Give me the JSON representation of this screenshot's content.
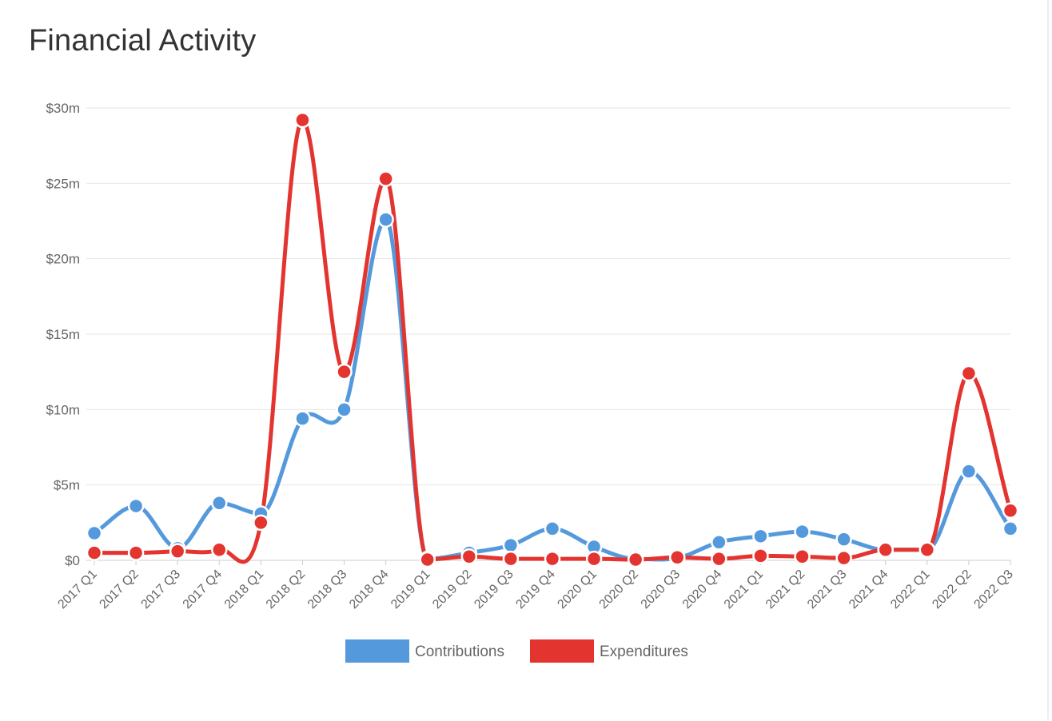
{
  "title": "Financial Activity",
  "chart_data": {
    "type": "line",
    "title": "Financial Activity",
    "xlabel": "",
    "ylabel": "",
    "categories": [
      "2017 Q1",
      "2017 Q2",
      "2017 Q3",
      "2017 Q4",
      "2018 Q1",
      "2018 Q2",
      "2018 Q3",
      "2018 Q4",
      "2019 Q1",
      "2019 Q2",
      "2019 Q3",
      "2019 Q4",
      "2020 Q1",
      "2020 Q2",
      "2020 Q3",
      "2020 Q4",
      "2021 Q1",
      "2021 Q2",
      "2021 Q3",
      "2021 Q4",
      "2022 Q1",
      "2022 Q2",
      "2022 Q3"
    ],
    "y_ticks": [
      0,
      5,
      10,
      15,
      20,
      25,
      30
    ],
    "y_tick_labels": [
      "$0",
      "$5m",
      "$10m",
      "$15m",
      "$20m",
      "$25m",
      "$30m"
    ],
    "y_unit": "millions of dollars",
    "ylim": [
      0,
      30
    ],
    "grid": true,
    "legend_position": "bottom",
    "series": [
      {
        "name": "Contributions",
        "color": "#5599dd",
        "values": [
          1.8,
          3.6,
          0.8,
          3.8,
          3.1,
          9.4,
          10.0,
          22.6,
          0.1,
          0.5,
          1.0,
          2.1,
          0.9,
          0.1,
          0.15,
          1.2,
          1.6,
          1.9,
          1.4,
          0.7,
          0.7,
          5.9,
          2.1
        ]
      },
      {
        "name": "Expenditures",
        "color": "#e3342f",
        "values": [
          0.5,
          0.5,
          0.6,
          0.7,
          2.5,
          29.2,
          12.5,
          25.3,
          0.05,
          0.25,
          0.1,
          0.1,
          0.1,
          0.05,
          0.2,
          0.1,
          0.3,
          0.25,
          0.15,
          0.7,
          0.7,
          12.4,
          3.3
        ]
      }
    ]
  }
}
